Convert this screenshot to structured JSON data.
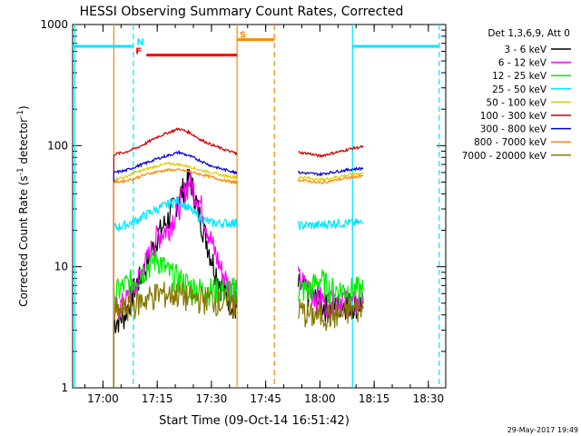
{
  "chart_data": {
    "type": "line",
    "title": "HESSI Observing Summary Count Rates, Corrected",
    "xlabel": "Start Time (09-Oct-14 16:51:42)",
    "ylabel_parts": [
      "Corrected Count Rate (s",
      "-1",
      " detector",
      "-1",
      ")"
    ],
    "footer_date": "29-May-2017 19:49",
    "yscale": "log",
    "xlim": [
      16.86,
      18.58
    ],
    "ylim": [
      1,
      1000
    ],
    "x_ticks": [
      {
        "v": 17.0,
        "label": "17:00"
      },
      {
        "v": 17.25,
        "label": "17:15"
      },
      {
        "v": 17.5,
        "label": "17:30"
      },
      {
        "v": 17.75,
        "label": "17:45"
      },
      {
        "v": 18.0,
        "label": "18:00"
      },
      {
        "v": 18.25,
        "label": "18:15"
      },
      {
        "v": 18.5,
        "label": "18:30"
      }
    ],
    "y_ticks": [
      {
        "v": 1,
        "label": "1"
      },
      {
        "v": 10,
        "label": "10"
      },
      {
        "v": 100,
        "label": "100"
      },
      {
        "v": 1000,
        "label": "1000"
      }
    ],
    "legend_header": "Det 1,3,6,9, Att 0",
    "legend_placement": "right",
    "annotations": [
      {
        "text": "N",
        "color": "#00e5ff"
      },
      {
        "text": "F",
        "color": "#ff0000"
      },
      {
        "text": "S",
        "color": "#ff8800"
      }
    ],
    "series": [
      {
        "name": "3 - 6 keV",
        "color": "#000000",
        "x": [
          17.05,
          17.1,
          17.15,
          17.2,
          17.25,
          17.3,
          17.35,
          17.4,
          17.45,
          17.5,
          17.55,
          17.6,
          17.618,
          17.9,
          17.95,
          18.0,
          18.05,
          18.1,
          18.15,
          18.2
        ],
        "y": [
          3.5,
          4,
          7,
          10,
          18,
          25,
          38,
          55,
          25,
          12,
          6.5,
          5,
          4.5,
          7,
          6,
          5,
          4.5,
          5,
          5,
          5
        ]
      },
      {
        "name": "6 - 12 keV",
        "color": "#ff00ff",
        "x": [
          17.05,
          17.1,
          17.15,
          17.2,
          17.25,
          17.3,
          17.35,
          17.4,
          17.45,
          17.5,
          17.55,
          17.6,
          17.618,
          17.9,
          17.95,
          18.0,
          18.05,
          18.1,
          18.15,
          18.2
        ],
        "y": [
          4.5,
          5,
          7,
          11,
          18,
          21,
          32,
          52,
          33,
          16,
          9,
          6,
          7,
          8,
          6.5,
          5.5,
          5,
          5.5,
          5,
          5
        ]
      },
      {
        "name": "12 - 25 keV",
        "color": "#00ee00",
        "x": [
          17.05,
          17.1,
          17.15,
          17.2,
          17.25,
          17.3,
          17.35,
          17.4,
          17.45,
          17.5,
          17.55,
          17.6,
          17.618,
          17.9,
          17.95,
          18.0,
          18.05,
          18.1,
          18.15,
          18.2
        ],
        "y": [
          6,
          7,
          8,
          10,
          12,
          9,
          8,
          7,
          6.5,
          6.5,
          6.5,
          6.5,
          6.5,
          6.5,
          6.5,
          8,
          6.5,
          6.5,
          6.5,
          6.5
        ]
      },
      {
        "name": "25 - 50 keV",
        "color": "#00e5ff",
        "x": [
          17.05,
          17.1,
          17.15,
          17.2,
          17.25,
          17.3,
          17.35,
          17.4,
          17.45,
          17.5,
          17.55,
          17.6,
          17.618,
          17.9,
          17.95,
          18.0,
          18.05,
          18.1,
          18.15,
          18.2
        ],
        "y": [
          21,
          22,
          24,
          27,
          30,
          33,
          35,
          30,
          25,
          23,
          23,
          23,
          23,
          22,
          22,
          22,
          23,
          23,
          23,
          23
        ]
      },
      {
        "name": "50 - 100 keV",
        "color": "#ddcc00",
        "x": [
          17.05,
          17.1,
          17.15,
          17.2,
          17.25,
          17.3,
          17.35,
          17.4,
          17.45,
          17.5,
          17.55,
          17.6,
          17.618,
          17.9,
          17.95,
          18.0,
          18.05,
          18.1,
          18.15,
          18.2
        ],
        "y": [
          53,
          55,
          60,
          64,
          68,
          71,
          70,
          67,
          63,
          60,
          57,
          55,
          55,
          55,
          54,
          52,
          54,
          56,
          58,
          59
        ]
      },
      {
        "name": "100 - 300 keV",
        "color": "#cc0000",
        "x": [
          17.05,
          17.1,
          17.15,
          17.2,
          17.25,
          17.3,
          17.35,
          17.4,
          17.45,
          17.5,
          17.55,
          17.6,
          17.618,
          17.9,
          17.95,
          18.0,
          18.05,
          18.1,
          18.15,
          18.2
        ],
        "y": [
          85,
          88,
          95,
          105,
          118,
          128,
          138,
          128,
          112,
          102,
          94,
          88,
          86,
          88,
          86,
          82,
          86,
          90,
          95,
          98
        ]
      },
      {
        "name": "300 - 800 keV",
        "color": "#0000dd",
        "x": [
          17.05,
          17.1,
          17.15,
          17.2,
          17.25,
          17.3,
          17.35,
          17.4,
          17.45,
          17.5,
          17.55,
          17.6,
          17.618,
          17.9,
          17.95,
          18.0,
          18.05,
          18.1,
          18.15,
          18.2
        ],
        "y": [
          60,
          62,
          67,
          72,
          78,
          83,
          88,
          82,
          75,
          68,
          64,
          61,
          60,
          60,
          59,
          58,
          60,
          62,
          64,
          65
        ]
      },
      {
        "name": "800 - 7000 keV",
        "color": "#ff8800",
        "x": [
          17.05,
          17.1,
          17.15,
          17.2,
          17.25,
          17.3,
          17.35,
          17.4,
          17.45,
          17.5,
          17.55,
          17.6,
          17.618,
          17.9,
          17.95,
          18.0,
          18.05,
          18.1,
          18.15,
          18.2
        ],
        "y": [
          50,
          51,
          54,
          58,
          61,
          63,
          63,
          61,
          58,
          55,
          52,
          50,
          50,
          52,
          51,
          49,
          51,
          53,
          55,
          56
        ]
      },
      {
        "name": "7000 - 20000 keV",
        "color": "#887700",
        "x": [
          17.05,
          17.1,
          17.15,
          17.2,
          17.25,
          17.3,
          17.35,
          17.4,
          17.45,
          17.5,
          17.55,
          17.6,
          17.618,
          17.9,
          17.95,
          18.0,
          18.05,
          18.1,
          18.15,
          18.2
        ],
        "y": [
          4,
          4.5,
          5,
          5.5,
          6,
          6,
          6,
          5.5,
          5.5,
          5.5,
          5,
          5,
          5,
          4.5,
          4,
          4,
          4,
          4,
          4.5,
          4.5
        ]
      }
    ]
  }
}
